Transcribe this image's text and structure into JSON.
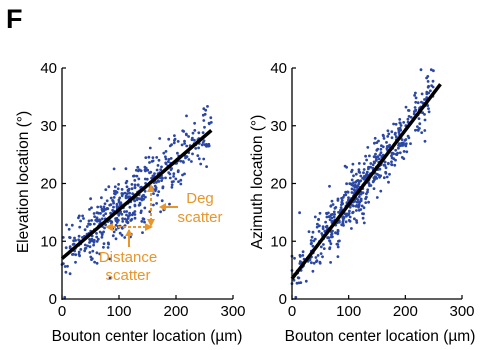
{
  "panel_letter": "F",
  "colors": {
    "points": "#2b47a3",
    "fit": "#000000",
    "annotation": "#e8962c",
    "axis": "#000000"
  },
  "chart_data": [
    {
      "type": "scatter",
      "xlabel": "Bouton center location (µm)",
      "ylabel": "Elevation location (°)",
      "xlim": [
        0,
        300
      ],
      "ylim": [
        0,
        40
      ],
      "xticks": [
        0,
        100,
        200,
        300
      ],
      "yticks": [
        0,
        10,
        20,
        30,
        40
      ],
      "fit_line": {
        "x": [
          0,
          262
        ],
        "y": [
          7,
          29.2
        ]
      },
      "scatter_cloud": {
        "n": 520,
        "x_range": [
          0,
          262
        ],
        "slope": 0.0847,
        "intercept": 7,
        "sd": 2.6
      },
      "annotations": {
        "deg_scatter": [
          "Deg",
          "scatter"
        ],
        "distance_scatter": [
          "Distance",
          "scatter"
        ]
      }
    },
    {
      "type": "scatter",
      "xlabel": "Bouton center location (µm)",
      "ylabel": "Azimuth location (°)",
      "xlim": [
        0,
        300
      ],
      "ylim": [
        0,
        40
      ],
      "xticks": [
        0,
        100,
        200,
        300
      ],
      "yticks": [
        0,
        10,
        20,
        30,
        40
      ],
      "fit_line": {
        "x": [
          0,
          262
        ],
        "y": [
          3.5,
          37.2
        ]
      },
      "scatter_cloud": {
        "n": 560,
        "x_range": [
          0,
          250
        ],
        "slope": 0.1286,
        "intercept": 3.5,
        "sd": 2.4
      }
    }
  ]
}
